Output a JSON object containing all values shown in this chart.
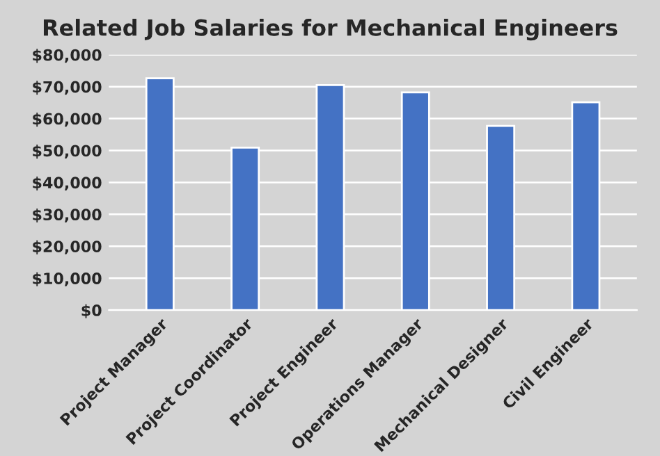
{
  "chart_data": {
    "type": "bar",
    "title": "Related Job Salaries for Mechanical Engineers",
    "categories": [
      "Project Manager",
      "Project Coordinator",
      "Project Engineer",
      "Operations Manager",
      "Mechanical Designer",
      "Civil Engineer"
    ],
    "values": [
      72600,
      50900,
      70500,
      68200,
      57700,
      65100
    ],
    "color": "#4472c4",
    "ylim": [
      0,
      80000
    ],
    "yticks": [
      {
        "value": 0,
        "label": "$0"
      },
      {
        "value": 10000,
        "label": "$10,000"
      },
      {
        "value": 20000,
        "label": "$20,000"
      },
      {
        "value": 30000,
        "label": "$30,000"
      },
      {
        "value": 40000,
        "label": "$40,000"
      },
      {
        "value": 50000,
        "label": "$50,000"
      },
      {
        "value": 60000,
        "label": "$60,000"
      },
      {
        "value": 70000,
        "label": "$70,000"
      },
      {
        "value": 80000,
        "label": "$80,000"
      }
    ],
    "grid": "y"
  }
}
